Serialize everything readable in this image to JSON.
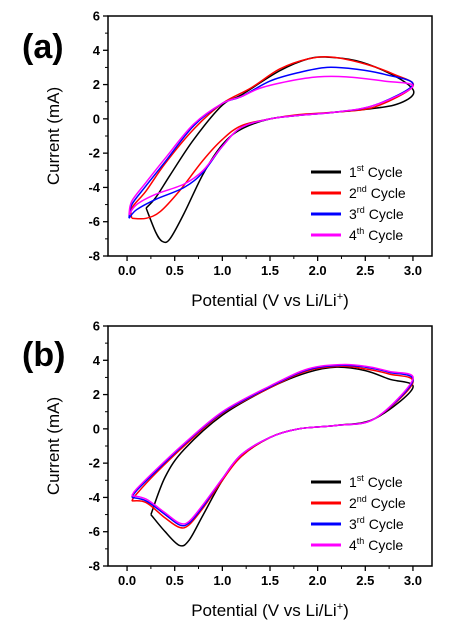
{
  "chart_data": [
    {
      "type": "line",
      "panel_label": "(a)",
      "xlabel": "Potential (V vs Li/Li",
      "xlabel_sup": "+",
      "xlabel_end": ")",
      "ylabel": "Current (mA)",
      "xlim": [
        -0.2,
        3.2
      ],
      "ylim": [
        -8,
        6
      ],
      "xticks": [
        "0.0",
        "0.5",
        "1.0",
        "1.5",
        "2.0",
        "2.5",
        "3.0"
      ],
      "yticks": [
        "-8",
        "-6",
        "-4",
        "-2",
        "0",
        "2",
        "4",
        "6"
      ],
      "legend_position": "bottom-right",
      "series": [
        {
          "label": "1",
          "sup": "st",
          "suffix": " Cycle",
          "color": "#000000",
          "points": [
            [
              0.2,
              -5.2
            ],
            [
              0.3,
              -6.6
            ],
            [
              0.37,
              -7.15
            ],
            [
              0.45,
              -7.0
            ],
            [
              0.6,
              -5.5
            ],
            [
              0.8,
              -3.2
            ],
            [
              1.0,
              -1.5
            ],
            [
              1.2,
              -0.6
            ],
            [
              1.5,
              0.0
            ],
            [
              1.8,
              0.2
            ],
            [
              2.0,
              0.3
            ],
            [
              2.4,
              0.5
            ],
            [
              2.8,
              0.8
            ],
            [
              3.0,
              1.4
            ],
            [
              2.95,
              2.0
            ],
            [
              2.7,
              2.8
            ],
            [
              2.4,
              3.4
            ],
            [
              2.1,
              3.6
            ],
            [
              1.9,
              3.5
            ],
            [
              1.6,
              2.8
            ],
            [
              1.2,
              1.4
            ],
            [
              1.0,
              0.8
            ],
            [
              0.7,
              -1.2
            ],
            [
              0.45,
              -3.3
            ],
            [
              0.3,
              -4.6
            ],
            [
              0.2,
              -5.2
            ]
          ]
        },
        {
          "label": "2",
          "sup": "nd",
          "suffix": " Cycle",
          "color": "#ff0000",
          "points": [
            [
              0.05,
              -5.8
            ],
            [
              0.2,
              -5.8
            ],
            [
              0.35,
              -5.4
            ],
            [
              0.55,
              -4.2
            ],
            [
              0.8,
              -2.4
            ],
            [
              1.0,
              -1.2
            ],
            [
              1.2,
              -0.4
            ],
            [
              1.5,
              0.0
            ],
            [
              1.8,
              0.25
            ],
            [
              2.2,
              0.4
            ],
            [
              2.6,
              0.7
            ],
            [
              3.0,
              1.9
            ],
            [
              2.8,
              2.6
            ],
            [
              2.5,
              3.2
            ],
            [
              2.15,
              3.6
            ],
            [
              1.9,
              3.5
            ],
            [
              1.6,
              2.9
            ],
            [
              1.3,
              1.8
            ],
            [
              1.0,
              0.9
            ],
            [
              0.7,
              -0.6
            ],
            [
              0.4,
              -2.6
            ],
            [
              0.2,
              -4.2
            ],
            [
              0.05,
              -5.2
            ],
            [
              0.05,
              -5.8
            ]
          ]
        },
        {
          "label": "3",
          "sup": "rd",
          "suffix": " Cycle",
          "color": "#0000ff",
          "points": [
            [
              0.02,
              -5.8
            ],
            [
              0.1,
              -5.3
            ],
            [
              0.3,
              -4.7
            ],
            [
              0.6,
              -4.0
            ],
            [
              0.8,
              -3.1
            ],
            [
              1.0,
              -1.6
            ],
            [
              1.2,
              -0.5
            ],
            [
              1.5,
              0.0
            ],
            [
              1.8,
              0.2
            ],
            [
              2.2,
              0.4
            ],
            [
              2.6,
              0.8
            ],
            [
              3.0,
              2.0
            ],
            [
              2.7,
              2.6
            ],
            [
              2.4,
              2.9
            ],
            [
              2.1,
              3.0
            ],
            [
              1.8,
              2.7
            ],
            [
              1.5,
              2.2
            ],
            [
              1.2,
              1.3
            ],
            [
              1.0,
              0.9
            ],
            [
              0.7,
              -0.4
            ],
            [
              0.4,
              -2.5
            ],
            [
              0.2,
              -3.9
            ],
            [
              0.05,
              -5.0
            ],
            [
              0.02,
              -5.8
            ]
          ]
        },
        {
          "label": "4",
          "sup": "th",
          "suffix": " Cycle",
          "color": "#ff00ff",
          "points": [
            [
              0.02,
              -5.6
            ],
            [
              0.1,
              -5.0
            ],
            [
              0.3,
              -4.4
            ],
            [
              0.6,
              -3.8
            ],
            [
              0.8,
              -3.0
            ],
            [
              1.0,
              -1.6
            ],
            [
              1.2,
              -0.5
            ],
            [
              1.5,
              0.0
            ],
            [
              1.8,
              0.2
            ],
            [
              2.2,
              0.4
            ],
            [
              2.6,
              0.8
            ],
            [
              3.0,
              1.9
            ],
            [
              2.7,
              2.2
            ],
            [
              2.3,
              2.45
            ],
            [
              2.0,
              2.45
            ],
            [
              1.7,
              2.2
            ],
            [
              1.4,
              1.8
            ],
            [
              1.2,
              1.3
            ],
            [
              1.0,
              0.9
            ],
            [
              0.7,
              -0.3
            ],
            [
              0.4,
              -2.3
            ],
            [
              0.2,
              -3.7
            ],
            [
              0.05,
              -4.8
            ],
            [
              0.02,
              -5.6
            ]
          ]
        }
      ]
    },
    {
      "type": "line",
      "panel_label": "(b)",
      "xlabel": "Potential (V vs Li/Li",
      "xlabel_sup": "+",
      "xlabel_end": ")",
      "ylabel": "Current (mA)",
      "xlim": [
        -0.2,
        3.2
      ],
      "ylim": [
        -8,
        6
      ],
      "xticks": [
        "0.0",
        "0.5",
        "1.0",
        "1.5",
        "2.0",
        "2.5",
        "3.0"
      ],
      "yticks": [
        "-8",
        "-6",
        "-4",
        "-2",
        "0",
        "2",
        "4",
        "6"
      ],
      "legend_position": "bottom-right",
      "series": [
        {
          "label": "1",
          "sup": "st",
          "suffix": " Cycle",
          "color": "#000000",
          "points": [
            [
              0.25,
              -5.0
            ],
            [
              0.4,
              -6.0
            ],
            [
              0.55,
              -6.8
            ],
            [
              0.65,
              -6.5
            ],
            [
              0.8,
              -5.0
            ],
            [
              1.0,
              -3.0
            ],
            [
              1.2,
              -1.6
            ],
            [
              1.5,
              -0.5
            ],
            [
              1.8,
              0.0
            ],
            [
              2.2,
              0.2
            ],
            [
              2.6,
              0.6
            ],
            [
              3.0,
              2.4
            ],
            [
              2.75,
              2.9
            ],
            [
              2.5,
              3.4
            ],
            [
              2.2,
              3.6
            ],
            [
              1.9,
              3.3
            ],
            [
              1.5,
              2.4
            ],
            [
              1.0,
              0.8
            ],
            [
              0.6,
              -1.2
            ],
            [
              0.4,
              -2.8
            ],
            [
              0.25,
              -5.0
            ]
          ]
        },
        {
          "label": "2",
          "sup": "nd",
          "suffix": " Cycle",
          "color": "#ff0000",
          "points": [
            [
              0.05,
              -4.2
            ],
            [
              0.2,
              -4.3
            ],
            [
              0.4,
              -5.2
            ],
            [
              0.55,
              -5.75
            ],
            [
              0.65,
              -5.6
            ],
            [
              0.8,
              -4.6
            ],
            [
              1.0,
              -3.0
            ],
            [
              1.2,
              -1.6
            ],
            [
              1.5,
              -0.5
            ],
            [
              1.8,
              0.0
            ],
            [
              2.2,
              0.2
            ],
            [
              2.6,
              0.6
            ],
            [
              3.0,
              2.7
            ],
            [
              2.75,
              3.2
            ],
            [
              2.5,
              3.5
            ],
            [
              2.25,
              3.65
            ],
            [
              1.9,
              3.4
            ],
            [
              1.5,
              2.4
            ],
            [
              1.0,
              0.9
            ],
            [
              0.6,
              -1.0
            ],
            [
              0.3,
              -2.6
            ],
            [
              0.1,
              -3.8
            ],
            [
              0.05,
              -4.2
            ]
          ]
        },
        {
          "label": "3",
          "sup": "rd",
          "suffix": " Cycle",
          "color": "#0000ff",
          "points": [
            [
              0.05,
              -4.0
            ],
            [
              0.2,
              -4.2
            ],
            [
              0.4,
              -5.0
            ],
            [
              0.55,
              -5.6
            ],
            [
              0.65,
              -5.5
            ],
            [
              0.8,
              -4.5
            ],
            [
              1.0,
              -2.9
            ],
            [
              1.2,
              -1.5
            ],
            [
              1.5,
              -0.5
            ],
            [
              1.8,
              0.0
            ],
            [
              2.2,
              0.2
            ],
            [
              2.6,
              0.6
            ],
            [
              3.0,
              2.8
            ],
            [
              2.75,
              3.3
            ],
            [
              2.5,
              3.6
            ],
            [
              2.25,
              3.7
            ],
            [
              1.9,
              3.45
            ],
            [
              1.5,
              2.45
            ],
            [
              1.0,
              0.95
            ],
            [
              0.6,
              -0.9
            ],
            [
              0.3,
              -2.5
            ],
            [
              0.1,
              -3.6
            ],
            [
              0.05,
              -4.0
            ]
          ]
        },
        {
          "label": "4",
          "sup": "th",
          "suffix": " Cycle",
          "color": "#ff00ff",
          "points": [
            [
              0.05,
              -3.9
            ],
            [
              0.2,
              -4.1
            ],
            [
              0.4,
              -4.9
            ],
            [
              0.55,
              -5.5
            ],
            [
              0.65,
              -5.4
            ],
            [
              0.8,
              -4.4
            ],
            [
              1.0,
              -2.9
            ],
            [
              1.2,
              -1.5
            ],
            [
              1.5,
              -0.5
            ],
            [
              1.8,
              0.0
            ],
            [
              2.2,
              0.2
            ],
            [
              2.6,
              0.6
            ],
            [
              3.0,
              2.9
            ],
            [
              2.75,
              3.35
            ],
            [
              2.5,
              3.65
            ],
            [
              2.25,
              3.75
            ],
            [
              1.9,
              3.5
            ],
            [
              1.5,
              2.5
            ],
            [
              1.0,
              1.0
            ],
            [
              0.6,
              -0.85
            ],
            [
              0.3,
              -2.4
            ],
            [
              0.1,
              -3.5
            ],
            [
              0.05,
              -3.9
            ]
          ]
        }
      ]
    }
  ]
}
